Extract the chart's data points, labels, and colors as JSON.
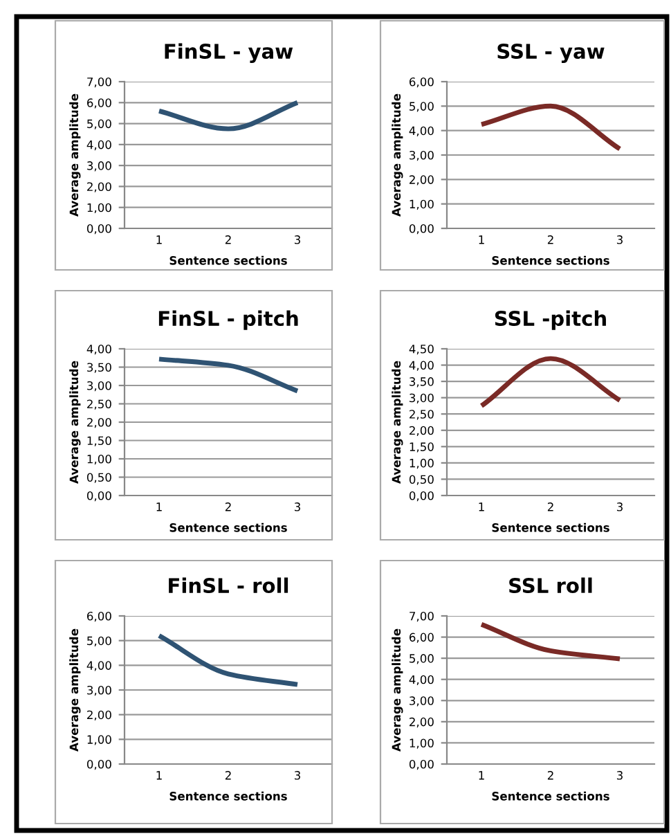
{
  "chart_data": [
    {
      "type": "line",
      "title": "FinSL - yaw",
      "xlabel": "Sentence sections",
      "ylabel": "Average amplitude",
      "categories": [
        "1",
        "2",
        "3"
      ],
      "series": [
        {
          "color": "#2f5373",
          "values": [
            5.6,
            4.75,
            6.0
          ]
        }
      ],
      "ylim": [
        0,
        7
      ],
      "yticks": [
        {
          "value": 0,
          "label": "0,00"
        },
        {
          "value": 1,
          "label": "1,00"
        },
        {
          "value": 2,
          "label": "2,00"
        },
        {
          "value": 3,
          "label": "3,00"
        },
        {
          "value": 4,
          "label": "4,00"
        },
        {
          "value": 5,
          "label": "5,00"
        },
        {
          "value": 6,
          "label": "6,00"
        },
        {
          "value": 7,
          "label": "7,00"
        }
      ],
      "grid": "y",
      "marker": "none",
      "line_style": "solid"
    },
    {
      "type": "line",
      "title": "SSL - yaw",
      "xlabel": "Sentence sections",
      "ylabel": "Average amplitude",
      "categories": [
        "1",
        "2",
        "3"
      ],
      "series": [
        {
          "color": "#7a2a26",
          "values": [
            4.25,
            5.0,
            3.25
          ]
        }
      ],
      "ylim": [
        0,
        6
      ],
      "yticks": [
        {
          "value": 0,
          "label": "0,00"
        },
        {
          "value": 1,
          "label": "1,00"
        },
        {
          "value": 2,
          "label": "2,00"
        },
        {
          "value": 3,
          "label": "3,00"
        },
        {
          "value": 4,
          "label": "4,00"
        },
        {
          "value": 5,
          "label": "5,00"
        },
        {
          "value": 6,
          "label": "6,00"
        }
      ],
      "grid": "y",
      "marker": "none",
      "line_style": "solid"
    },
    {
      "type": "line",
      "title": "FinSL - pitch",
      "xlabel": "Sentence sections",
      "ylabel": "Average amplitude",
      "categories": [
        "1",
        "2",
        "3"
      ],
      "series": [
        {
          "color": "#2f5373",
          "values": [
            3.72,
            3.55,
            2.85
          ]
        }
      ],
      "ylim": [
        0,
        4
      ],
      "yticks": [
        {
          "value": 0,
          "label": "0,00"
        },
        {
          "value": 0.5,
          "label": "0,50"
        },
        {
          "value": 1,
          "label": "1,00"
        },
        {
          "value": 1.5,
          "label": "1,50"
        },
        {
          "value": 2,
          "label": "2,00"
        },
        {
          "value": 2.5,
          "label": "2,50"
        },
        {
          "value": 3,
          "label": "3,00"
        },
        {
          "value": 3.5,
          "label": "3,50"
        },
        {
          "value": 4,
          "label": "4,00"
        }
      ],
      "grid": "y",
      "marker": "none",
      "line_style": "solid"
    },
    {
      "type": "line",
      "title": "SSL -pitch",
      "xlabel": "Sentence sections",
      "ylabel": "Average amplitude",
      "categories": [
        "1",
        "2",
        "3"
      ],
      "series": [
        {
          "color": "#7a2a26",
          "values": [
            2.75,
            4.2,
            2.92
          ]
        }
      ],
      "ylim": [
        0,
        4.5
      ],
      "yticks": [
        {
          "value": 0,
          "label": "0,00"
        },
        {
          "value": 0.5,
          "label": "0,50"
        },
        {
          "value": 1,
          "label": "1,00"
        },
        {
          "value": 1.5,
          "label": "1,50"
        },
        {
          "value": 2,
          "label": "2,00"
        },
        {
          "value": 2.5,
          "label": "2,50"
        },
        {
          "value": 3,
          "label": "3,00"
        },
        {
          "value": 3.5,
          "label": "3,50"
        },
        {
          "value": 4,
          "label": "4,00"
        },
        {
          "value": 4.5,
          "label": "4,50"
        }
      ],
      "grid": "y",
      "marker": "none",
      "line_style": "solid"
    },
    {
      "type": "line",
      "title": "FinSL - roll",
      "xlabel": "Sentence sections",
      "ylabel": "Average amplitude",
      "categories": [
        "1",
        "2",
        "3"
      ],
      "series": [
        {
          "color": "#2f5373",
          "values": [
            5.2,
            3.65,
            3.22
          ]
        }
      ],
      "ylim": [
        0,
        6
      ],
      "yticks": [
        {
          "value": 0,
          "label": "0,00"
        },
        {
          "value": 1,
          "label": "1,00"
        },
        {
          "value": 2,
          "label": "2,00"
        },
        {
          "value": 3,
          "label": "3,00"
        },
        {
          "value": 4,
          "label": "4,00"
        },
        {
          "value": 5,
          "label": "5,00"
        },
        {
          "value": 6,
          "label": "6,00"
        }
      ],
      "grid": "y",
      "marker": "none",
      "line_style": "solid"
    },
    {
      "type": "line",
      "title": "SSL roll",
      "xlabel": "Sentence sections",
      "ylabel": "Average amplitude",
      "categories": [
        "1",
        "2",
        "3"
      ],
      "series": [
        {
          "color": "#7a2a26",
          "values": [
            6.6,
            5.35,
            4.97
          ]
        }
      ],
      "ylim": [
        0,
        7
      ],
      "yticks": [
        {
          "value": 0,
          "label": "0,00"
        },
        {
          "value": 1,
          "label": "1,00"
        },
        {
          "value": 2,
          "label": "2,00"
        },
        {
          "value": 3,
          "label": "3,00"
        },
        {
          "value": 4,
          "label": "4,00"
        },
        {
          "value": 5,
          "label": "5,00"
        },
        {
          "value": 6,
          "label": "6,00"
        },
        {
          "value": 7,
          "label": "7,00"
        }
      ],
      "grid": "y",
      "marker": "none",
      "line_style": "solid"
    }
  ]
}
